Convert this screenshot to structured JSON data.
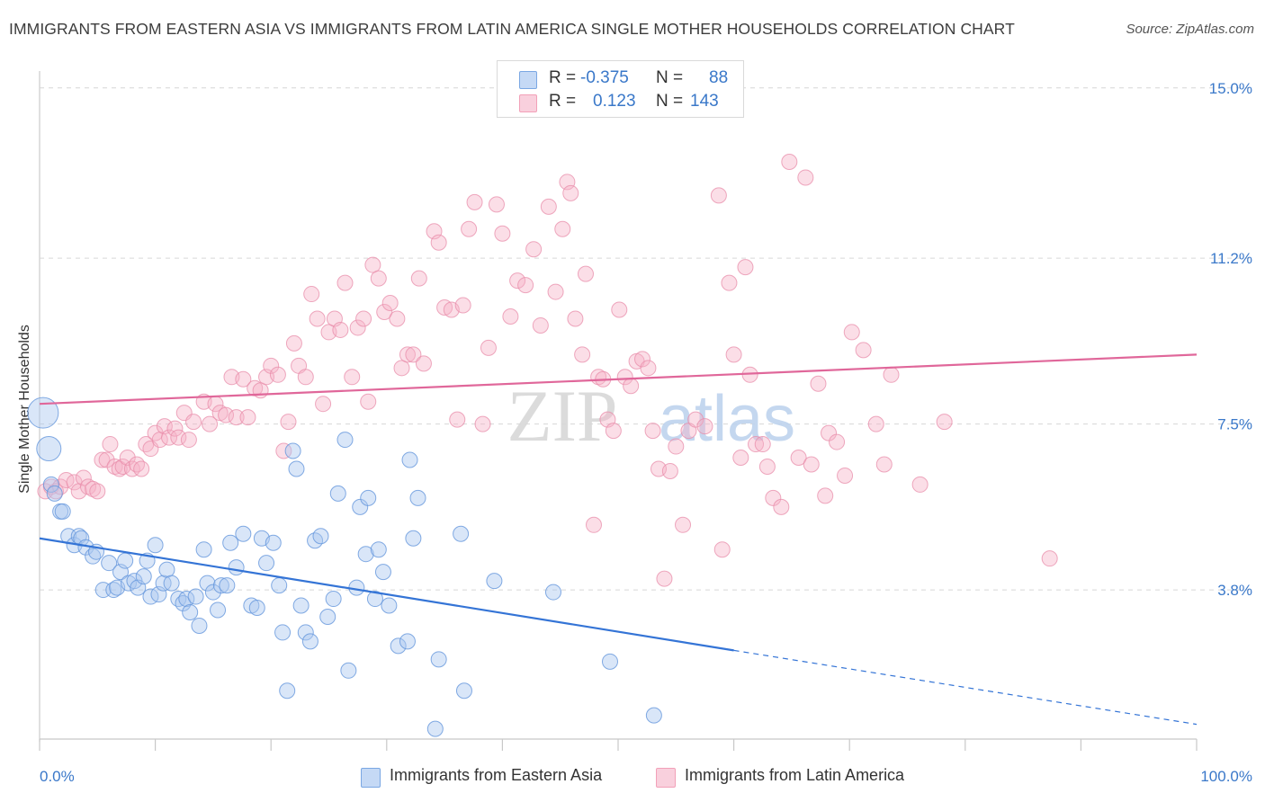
{
  "title": "IMMIGRANTS FROM EASTERN ASIA VS IMMIGRANTS FROM LATIN AMERICA SINGLE MOTHER HOUSEHOLDS CORRELATION CHART",
  "source": "Source: ZipAtlas.com",
  "watermark": {
    "zip": "ZIP",
    "atlas": "atlas"
  },
  "legend": {
    "rows": [
      {
        "r_label": "R =",
        "r_value": "-0.375",
        "n_label": "N =",
        "n_value": "88"
      },
      {
        "r_label": "R =",
        "r_value": "0.123",
        "n_label": "N =",
        "n_value": "143"
      }
    ]
  },
  "bottom_legend": [
    "Immigrants from Eastern Asia",
    "Immigrants from Latin America"
  ],
  "chart_data": {
    "type": "scatter",
    "title": "IMMIGRANTS FROM EASTERN ASIA VS IMMIGRANTS FROM LATIN AMERICA SINGLE MOTHER HOUSEHOLDS CORRELATION CHART",
    "xlabel": "",
    "ylabel": "Single Mother Households",
    "xlim": [
      0,
      100
    ],
    "ylim": [
      0,
      15.5
    ],
    "x_tick_labels": [
      "0.0%",
      "100.0%"
    ],
    "y_ticks": [
      3.8,
      7.5,
      11.2,
      15.0
    ],
    "y_tick_labels": [
      "3.8%",
      "7.5%",
      "11.2%",
      "15.0%"
    ],
    "grid": true,
    "legend_position": "top-center",
    "colors": {
      "blue": "#7aa7e3",
      "blue_line": "#3474d6",
      "pink": "#f2a0b8",
      "pink_line": "#e0679a",
      "tick": "#3a78c9"
    },
    "series": [
      {
        "name": "Immigrants from Eastern Asia",
        "color": "#7aa7e3",
        "r": -0.375,
        "n": 88,
        "trend": {
          "x": [
            0,
            60
          ],
          "y": [
            4.95,
            2.45
          ],
          "dashed_to": [
            100,
            0.8
          ]
        },
        "points": [
          [
            0.3,
            7.75
          ],
          [
            0.8,
            6.95
          ],
          [
            1.0,
            6.15
          ],
          [
            1.3,
            5.95
          ],
          [
            1.8,
            5.55
          ],
          [
            2.0,
            5.55
          ],
          [
            2.5,
            5.0
          ],
          [
            3.0,
            4.8
          ],
          [
            3.4,
            5.0
          ],
          [
            3.6,
            4.95
          ],
          [
            4.0,
            4.75
          ],
          [
            4.6,
            4.55
          ],
          [
            4.9,
            4.65
          ],
          [
            5.5,
            3.8
          ],
          [
            6.0,
            4.4
          ],
          [
            6.4,
            3.8
          ],
          [
            6.7,
            3.85
          ],
          [
            7.0,
            4.2
          ],
          [
            7.4,
            4.45
          ],
          [
            7.7,
            3.95
          ],
          [
            8.2,
            4.0
          ],
          [
            8.5,
            3.85
          ],
          [
            9.0,
            4.1
          ],
          [
            9.3,
            4.45
          ],
          [
            9.6,
            3.65
          ],
          [
            10.0,
            4.8
          ],
          [
            10.3,
            3.7
          ],
          [
            10.7,
            3.95
          ],
          [
            11.0,
            4.25
          ],
          [
            11.4,
            3.95
          ],
          [
            12.0,
            3.6
          ],
          [
            12.4,
            3.5
          ],
          [
            12.7,
            3.6
          ],
          [
            13.0,
            3.3
          ],
          [
            13.5,
            3.65
          ],
          [
            13.8,
            3.0
          ],
          [
            14.2,
            4.7
          ],
          [
            14.5,
            3.95
          ],
          [
            15.0,
            3.75
          ],
          [
            15.4,
            3.35
          ],
          [
            15.7,
            3.9
          ],
          [
            16.2,
            3.9
          ],
          [
            16.5,
            4.85
          ],
          [
            17.0,
            4.3
          ],
          [
            17.6,
            5.05
          ],
          [
            18.3,
            3.45
          ],
          [
            18.8,
            3.4
          ],
          [
            19.2,
            4.95
          ],
          [
            19.6,
            4.4
          ],
          [
            20.2,
            4.85
          ],
          [
            20.7,
            3.9
          ],
          [
            21.0,
            2.85
          ],
          [
            21.4,
            1.55
          ],
          [
            21.9,
            6.9
          ],
          [
            22.2,
            6.5
          ],
          [
            22.6,
            3.45
          ],
          [
            23.0,
            2.85
          ],
          [
            23.4,
            2.65
          ],
          [
            23.8,
            4.9
          ],
          [
            24.3,
            5.0
          ],
          [
            24.9,
            3.2
          ],
          [
            25.4,
            3.6
          ],
          [
            25.8,
            5.95
          ],
          [
            26.4,
            7.15
          ],
          [
            26.7,
            2.0
          ],
          [
            27.7,
            5.65
          ],
          [
            27.4,
            3.85
          ],
          [
            28.2,
            4.6
          ],
          [
            28.4,
            5.85
          ],
          [
            29.0,
            3.6
          ],
          [
            29.3,
            4.7
          ],
          [
            29.7,
            4.2
          ],
          [
            30.2,
            3.45
          ],
          [
            31.0,
            2.55
          ],
          [
            31.8,
            2.65
          ],
          [
            32.0,
            6.7
          ],
          [
            32.3,
            4.95
          ],
          [
            32.7,
            5.85
          ],
          [
            34.2,
            0.7
          ],
          [
            34.5,
            2.25
          ],
          [
            36.4,
            5.05
          ],
          [
            36.7,
            1.55
          ],
          [
            39.3,
            4.0
          ],
          [
            44.4,
            3.75
          ],
          [
            49.3,
            2.2
          ],
          [
            53.1,
            1.0
          ]
        ]
      },
      {
        "name": "Immigrants from Latin America",
        "color": "#f2a0b8",
        "r": 0.123,
        "n": 143,
        "trend": {
          "x": [
            0,
            100
          ],
          "y": [
            7.95,
            9.05
          ]
        },
        "points": [
          [
            0.5,
            6.0
          ],
          [
            1.0,
            6.1
          ],
          [
            1.4,
            6.0
          ],
          [
            1.8,
            6.1
          ],
          [
            2.3,
            6.25
          ],
          [
            3.0,
            6.2
          ],
          [
            3.4,
            6.0
          ],
          [
            3.8,
            6.3
          ],
          [
            4.2,
            6.1
          ],
          [
            4.6,
            6.05
          ],
          [
            5.0,
            6.0
          ],
          [
            5.4,
            6.7
          ],
          [
            5.8,
            6.7
          ],
          [
            6.1,
            7.05
          ],
          [
            6.5,
            6.55
          ],
          [
            6.9,
            6.5
          ],
          [
            7.2,
            6.55
          ],
          [
            7.6,
            6.75
          ],
          [
            8.0,
            6.5
          ],
          [
            8.4,
            6.6
          ],
          [
            8.8,
            6.5
          ],
          [
            9.2,
            7.05
          ],
          [
            9.6,
            6.95
          ],
          [
            10.0,
            7.3
          ],
          [
            10.4,
            7.15
          ],
          [
            10.8,
            7.45
          ],
          [
            11.2,
            7.2
          ],
          [
            11.7,
            7.4
          ],
          [
            12.0,
            7.2
          ],
          [
            12.5,
            7.75
          ],
          [
            12.9,
            7.15
          ],
          [
            13.3,
            7.55
          ],
          [
            14.2,
            8.0
          ],
          [
            14.7,
            7.5
          ],
          [
            15.2,
            7.95
          ],
          [
            15.6,
            7.75
          ],
          [
            16.1,
            7.7
          ],
          [
            16.6,
            8.55
          ],
          [
            17.0,
            7.65
          ],
          [
            17.6,
            8.5
          ],
          [
            18.0,
            7.65
          ],
          [
            18.6,
            8.3
          ],
          [
            19.1,
            8.25
          ],
          [
            19.6,
            8.55
          ],
          [
            20.0,
            8.8
          ],
          [
            20.6,
            8.6
          ],
          [
            21.1,
            6.9
          ],
          [
            21.5,
            7.55
          ],
          [
            22.0,
            9.3
          ],
          [
            22.4,
            8.8
          ],
          [
            23.0,
            8.55
          ],
          [
            23.5,
            10.4
          ],
          [
            24.0,
            9.85
          ],
          [
            24.5,
            7.95
          ],
          [
            25.0,
            9.55
          ],
          [
            25.5,
            9.85
          ],
          [
            26.0,
            9.6
          ],
          [
            26.4,
            10.65
          ],
          [
            27.0,
            8.55
          ],
          [
            27.5,
            9.65
          ],
          [
            28.0,
            9.85
          ],
          [
            28.4,
            8.0
          ],
          [
            28.8,
            11.05
          ],
          [
            29.3,
            10.75
          ],
          [
            29.8,
            10.0
          ],
          [
            30.3,
            10.2
          ],
          [
            30.9,
            9.85
          ],
          [
            31.3,
            8.75
          ],
          [
            31.8,
            9.05
          ],
          [
            32.3,
            9.05
          ],
          [
            32.8,
            10.75
          ],
          [
            33.2,
            8.85
          ],
          [
            34.1,
            11.8
          ],
          [
            34.5,
            11.55
          ],
          [
            35.0,
            10.1
          ],
          [
            35.6,
            10.05
          ],
          [
            36.1,
            7.6
          ],
          [
            36.6,
            10.15
          ],
          [
            37.1,
            11.85
          ],
          [
            37.6,
            12.45
          ],
          [
            38.3,
            7.5
          ],
          [
            38.8,
            9.2
          ],
          [
            39.5,
            12.4
          ],
          [
            40.0,
            11.75
          ],
          [
            40.7,
            9.9
          ],
          [
            41.3,
            10.7
          ],
          [
            42.0,
            10.6
          ],
          [
            42.7,
            11.4
          ],
          [
            43.3,
            9.7
          ],
          [
            44.0,
            12.35
          ],
          [
            44.6,
            10.45
          ],
          [
            45.2,
            11.85
          ],
          [
            45.6,
            12.9
          ],
          [
            45.9,
            12.65
          ],
          [
            46.3,
            9.85
          ],
          [
            46.9,
            9.05
          ],
          [
            47.2,
            10.85
          ],
          [
            47.9,
            5.25
          ],
          [
            48.3,
            8.55
          ],
          [
            48.7,
            8.5
          ],
          [
            49.1,
            7.6
          ],
          [
            49.6,
            7.35
          ],
          [
            50.1,
            10.05
          ],
          [
            50.6,
            8.55
          ],
          [
            51.1,
            8.35
          ],
          [
            51.6,
            8.9
          ],
          [
            52.1,
            8.95
          ],
          [
            52.6,
            8.75
          ],
          [
            53.0,
            7.35
          ],
          [
            53.5,
            6.5
          ],
          [
            54.0,
            4.05
          ],
          [
            54.5,
            6.45
          ],
          [
            55.0,
            7.0
          ],
          [
            55.6,
            5.25
          ],
          [
            56.1,
            7.35
          ],
          [
            56.7,
            7.6
          ],
          [
            57.5,
            7.45
          ],
          [
            58.7,
            12.6
          ],
          [
            59.0,
            4.7
          ],
          [
            59.6,
            10.65
          ],
          [
            60.0,
            9.05
          ],
          [
            60.6,
            6.75
          ],
          [
            61.0,
            11.0
          ],
          [
            61.4,
            8.6
          ],
          [
            61.9,
            7.05
          ],
          [
            62.5,
            7.05
          ],
          [
            62.9,
            6.55
          ],
          [
            63.4,
            5.85
          ],
          [
            64.1,
            5.65
          ],
          [
            64.8,
            13.35
          ],
          [
            65.6,
            6.75
          ],
          [
            66.2,
            13.0
          ],
          [
            66.7,
            6.6
          ],
          [
            67.3,
            8.4
          ],
          [
            67.9,
            5.9
          ],
          [
            68.2,
            7.3
          ],
          [
            68.9,
            7.1
          ],
          [
            69.6,
            6.35
          ],
          [
            70.2,
            9.55
          ],
          [
            71.2,
            9.15
          ],
          [
            72.3,
            7.5
          ],
          [
            73.0,
            6.6
          ],
          [
            73.6,
            8.6
          ],
          [
            76.1,
            6.15
          ],
          [
            78.2,
            7.55
          ],
          [
            87.3,
            4.5
          ]
        ]
      }
    ]
  }
}
